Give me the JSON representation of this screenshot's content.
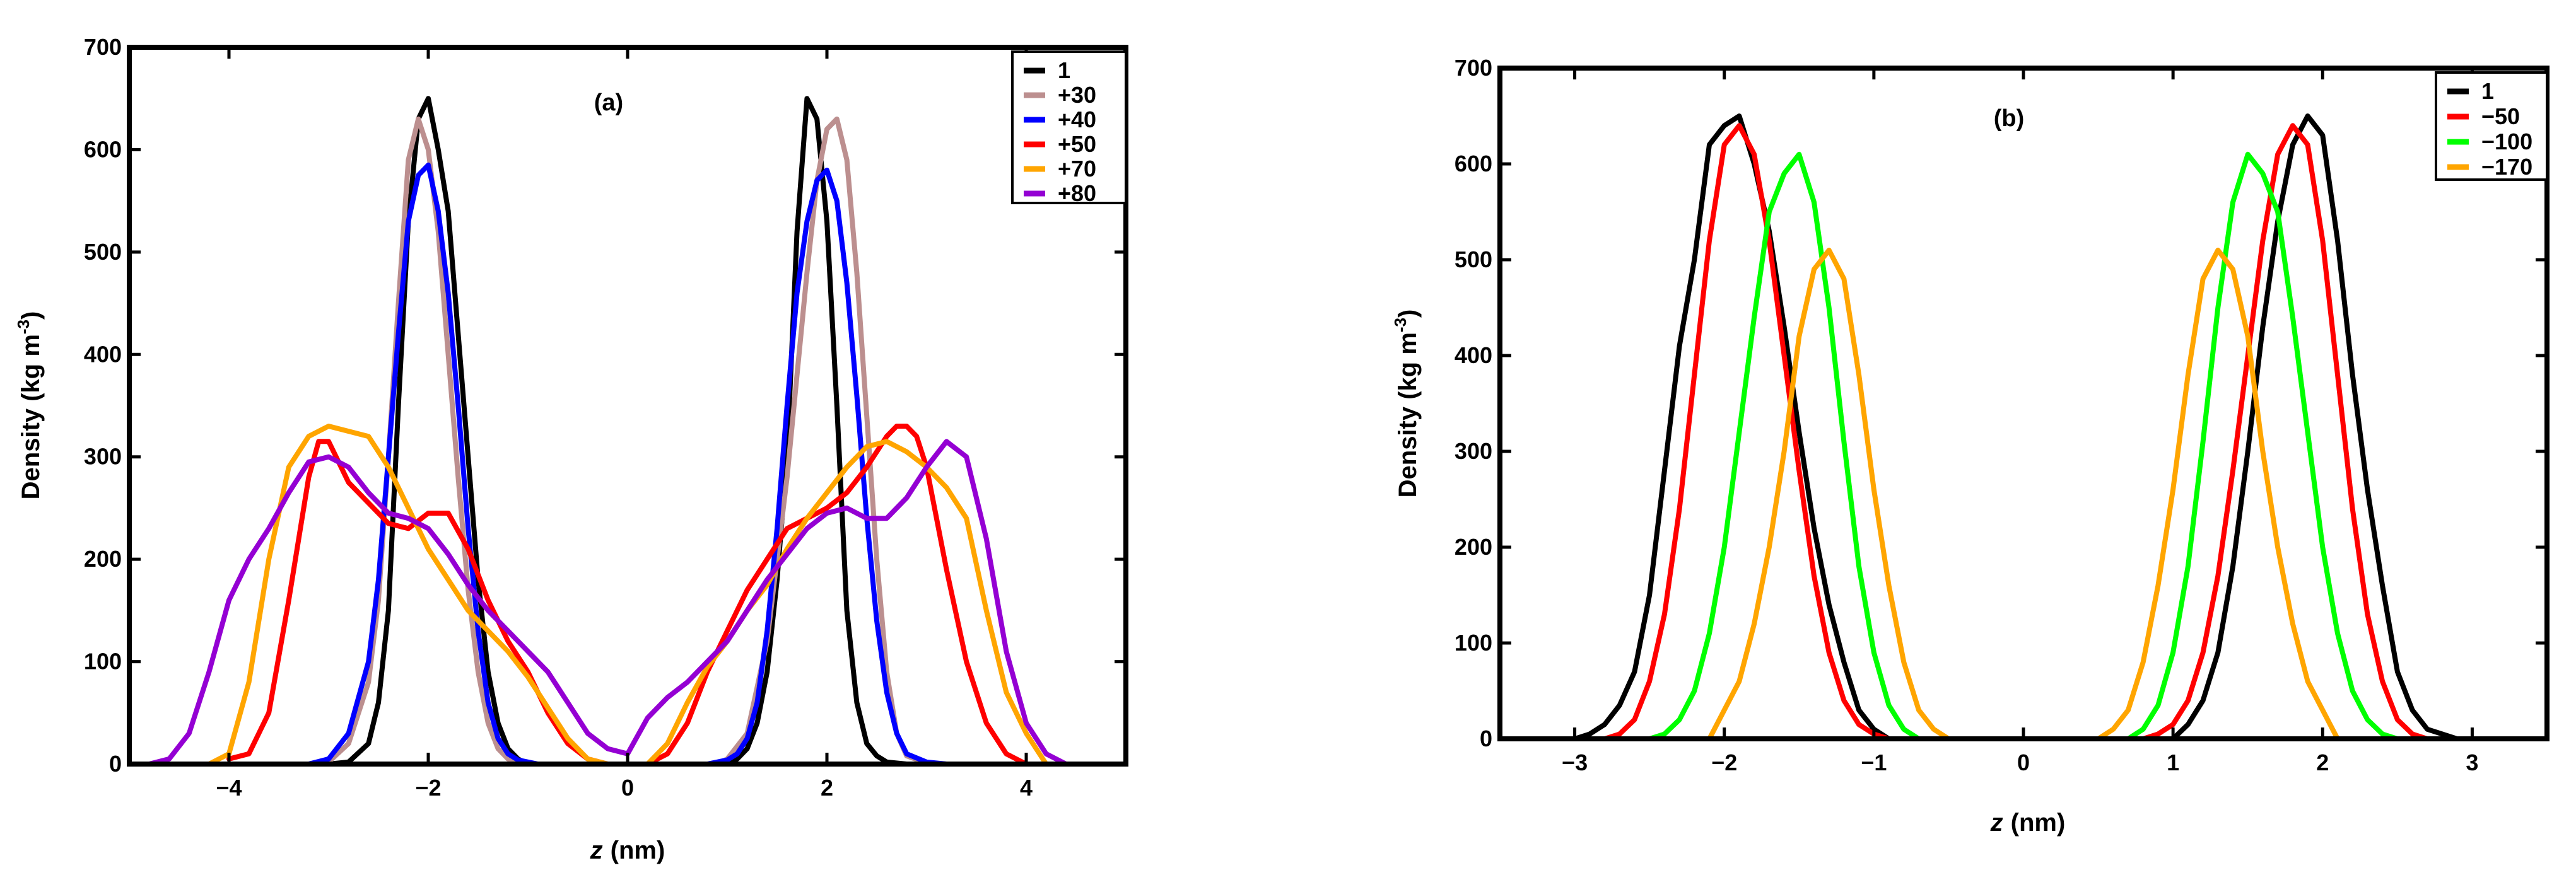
{
  "chart_data": [
    {
      "type": "line",
      "title": "(a)",
      "xlabel": "z",
      "xlabel_unit": "(nm)",
      "ylabel": "Density (kg m",
      "ylabel_sup": "-3",
      "ylabel_close": ")",
      "xlim": [
        -5,
        5
      ],
      "ylim": [
        0,
        700
      ],
      "xticks": [
        -4,
        -2,
        0,
        2,
        4
      ],
      "xtick_labels": [
        "−4",
        "−2",
        "0",
        "2",
        "4"
      ],
      "yticks": [
        0,
        100,
        200,
        300,
        400,
        500,
        600,
        700
      ],
      "ytick_labels": [
        "0",
        "100",
        "200",
        "300",
        "400",
        "500",
        "600",
        "700"
      ],
      "legend_position": "top-right",
      "series": [
        {
          "name": "1",
          "color": "#000000",
          "x": [
            -3.0,
            -2.8,
            -2.6,
            -2.5,
            -2.4,
            -2.3,
            -2.2,
            -2.1,
            -2.0,
            -1.9,
            -1.8,
            -1.7,
            -1.6,
            -1.5,
            -1.4,
            -1.3,
            -1.2,
            -1.1,
            -1.0
          ],
          "y": [
            0,
            2,
            20,
            60,
            150,
            350,
            530,
            630,
            650,
            600,
            540,
            420,
            300,
            180,
            90,
            40,
            15,
            5,
            0
          ]
        },
        {
          "name": "1",
          "color": "#000000",
          "x": [
            1.0,
            1.1,
            1.2,
            1.3,
            1.4,
            1.5,
            1.6,
            1.7,
            1.8,
            1.9,
            2.0,
            2.1,
            2.2,
            2.3,
            2.4,
            2.5,
            2.6,
            2.8,
            3.0
          ],
          "y": [
            0,
            5,
            15,
            40,
            90,
            180,
            300,
            520,
            650,
            630,
            530,
            350,
            150,
            60,
            20,
            8,
            2,
            0,
            0
          ]
        },
        {
          "name": "+30",
          "color": "#bc8f8f",
          "x": [
            -3.2,
            -3.0,
            -2.8,
            -2.6,
            -2.5,
            -2.4,
            -2.3,
            -2.2,
            -2.1,
            -2.0,
            -1.9,
            -1.8,
            -1.7,
            -1.6,
            -1.5,
            -1.4,
            -1.3,
            -1.2,
            -1.1,
            -1.0,
            -0.9
          ],
          "y": [
            0,
            2,
            20,
            80,
            160,
            300,
            450,
            590,
            630,
            600,
            520,
            400,
            280,
            170,
            90,
            40,
            15,
            5,
            2,
            0,
            0
          ]
        },
        {
          "name": "+30",
          "color": "#bc8f8f",
          "x": [
            0.9,
            1.0,
            1.2,
            1.4,
            1.6,
            1.8,
            1.9,
            2.0,
            2.1,
            2.2,
            2.3,
            2.4,
            2.5,
            2.6,
            2.7,
            2.8,
            3.0,
            3.2
          ],
          "y": [
            0,
            5,
            30,
            120,
            280,
            480,
            570,
            620,
            630,
            590,
            480,
            340,
            200,
            90,
            30,
            8,
            1,
            0
          ]
        },
        {
          "name": "+40",
          "color": "#0000ff",
          "x": [
            -3.2,
            -3.0,
            -2.8,
            -2.6,
            -2.5,
            -2.4,
            -2.3,
            -2.2,
            -2.1,
            -2.0,
            -1.9,
            -1.8,
            -1.7,
            -1.6,
            -1.5,
            -1.4,
            -1.3,
            -1.2,
            -1.1,
            -1.0,
            -0.9,
            -0.8
          ],
          "y": [
            0,
            5,
            30,
            100,
            180,
            300,
            420,
            530,
            575,
            585,
            540,
            460,
            350,
            230,
            130,
            60,
            25,
            10,
            4,
            2,
            0,
            0
          ]
        },
        {
          "name": "+40",
          "color": "#0000ff",
          "x": [
            0.8,
            0.9,
            1.0,
            1.1,
            1.2,
            1.3,
            1.4,
            1.5,
            1.6,
            1.7,
            1.8,
            1.9,
            2.0,
            2.1,
            2.2,
            2.3,
            2.4,
            2.5,
            2.6,
            2.7,
            2.8,
            3.0,
            3.2
          ],
          "y": [
            0,
            2,
            4,
            10,
            25,
            60,
            130,
            230,
            350,
            460,
            530,
            570,
            580,
            550,
            470,
            360,
            240,
            140,
            70,
            30,
            10,
            2,
            0
          ]
        },
        {
          "name": "+50",
          "color": "#ff0000",
          "x": [
            -4.0,
            -3.8,
            -3.6,
            -3.4,
            -3.2,
            -3.1,
            -3.0,
            -2.9,
            -2.8,
            -2.6,
            -2.4,
            -2.2,
            -2.0,
            -1.8,
            -1.6,
            -1.4,
            -1.2,
            -1.0,
            -0.8,
            -0.6,
            -0.4,
            -0.2
          ],
          "y": [
            5,
            10,
            50,
            160,
            280,
            315,
            315,
            295,
            275,
            255,
            235,
            230,
            245,
            245,
            210,
            160,
            120,
            90,
            50,
            20,
            5,
            0
          ]
        },
        {
          "name": "+50",
          "color": "#ff0000",
          "x": [
            0.2,
            0.4,
            0.6,
            0.8,
            1.0,
            1.2,
            1.4,
            1.6,
            1.8,
            2.0,
            2.2,
            2.4,
            2.6,
            2.7,
            2.8,
            2.9,
            3.0,
            3.2,
            3.4,
            3.6,
            3.8,
            4.0
          ],
          "y": [
            0,
            10,
            40,
            90,
            130,
            170,
            200,
            230,
            240,
            250,
            265,
            290,
            320,
            330,
            330,
            320,
            290,
            190,
            100,
            40,
            10,
            0
          ]
        },
        {
          "name": "+70",
          "color": "#ffa500",
          "x": [
            -4.2,
            -4.0,
            -3.8,
            -3.6,
            -3.4,
            -3.2,
            -3.0,
            -2.8,
            -2.6,
            -2.4,
            -2.2,
            -2.0,
            -1.8,
            -1.6,
            -1.4,
            -1.2,
            -1.0,
            -0.8,
            -0.6,
            -0.4,
            -0.2
          ],
          "y": [
            0,
            10,
            80,
            200,
            290,
            320,
            330,
            325,
            320,
            290,
            250,
            210,
            180,
            150,
            130,
            110,
            85,
            55,
            25,
            5,
            0
          ]
        },
        {
          "name": "+70",
          "color": "#ffa500",
          "x": [
            0.2,
            0.4,
            0.6,
            0.8,
            1.0,
            1.2,
            1.4,
            1.6,
            1.8,
            2.0,
            2.2,
            2.4,
            2.6,
            2.8,
            3.0,
            3.2,
            3.4,
            3.6,
            3.8,
            4.0,
            4.2
          ],
          "y": [
            0,
            20,
            60,
            95,
            120,
            150,
            175,
            210,
            240,
            265,
            290,
            310,
            315,
            305,
            290,
            270,
            240,
            150,
            70,
            30,
            0
          ]
        },
        {
          "name": "+80",
          "color": "#9400d3",
          "x": [
            -4.8,
            -4.6,
            -4.4,
            -4.2,
            -4.0,
            -3.8,
            -3.6,
            -3.4,
            -3.2,
            -3.0,
            -2.8,
            -2.6,
            -2.4,
            -2.2,
            -2.0,
            -1.8,
            -1.6,
            -1.4,
            -1.2,
            -1.0,
            -0.8,
            -0.6,
            -0.4,
            -0.2,
            0.0
          ],
          "y": [
            0,
            5,
            30,
            90,
            160,
            200,
            230,
            265,
            295,
            300,
            290,
            265,
            245,
            240,
            230,
            205,
            175,
            150,
            130,
            110,
            90,
            60,
            30,
            15,
            10
          ]
        },
        {
          "name": "+80",
          "color": "#9400d3",
          "x": [
            0.0,
            0.2,
            0.4,
            0.6,
            0.8,
            1.0,
            1.2,
            1.4,
            1.6,
            1.8,
            2.0,
            2.2,
            2.4,
            2.6,
            2.8,
            3.0,
            3.2,
            3.4,
            3.6,
            3.8,
            4.0,
            4.2,
            4.4,
            4.6
          ],
          "y": [
            10,
            45,
            65,
            80,
            100,
            120,
            150,
            180,
            205,
            230,
            245,
            250,
            240,
            240,
            260,
            290,
            315,
            300,
            220,
            110,
            40,
            10,
            0,
            0
          ]
        }
      ],
      "legend": [
        {
          "label": "1",
          "color": "#000000"
        },
        {
          "label": "+30",
          "color": "#bc8f8f"
        },
        {
          "label": "+40",
          "color": "#0000ff"
        },
        {
          "label": "+50",
          "color": "#ff0000"
        },
        {
          "label": "+70",
          "color": "#ffa500"
        },
        {
          "label": "+80",
          "color": "#9400d3"
        }
      ]
    },
    {
      "type": "line",
      "title": "(b)",
      "xlabel": "z",
      "xlabel_unit": "(nm)",
      "ylabel": "Density (kg m",
      "ylabel_sup": "-3",
      "ylabel_close": ")",
      "xlim": [
        -3.5,
        3.5
      ],
      "ylim": [
        0,
        700
      ],
      "xticks": [
        -3,
        -2,
        -1,
        0,
        1,
        2,
        3
      ],
      "xtick_labels": [
        "−3",
        "−2",
        "−1",
        "0",
        "1",
        "2",
        "3"
      ],
      "yticks": [
        0,
        100,
        200,
        300,
        400,
        500,
        600,
        700
      ],
      "ytick_labels": [
        "0",
        "100",
        "200",
        "300",
        "400",
        "500",
        "600",
        "700"
      ],
      "legend_position": "top-right",
      "series": [
        {
          "name": "1",
          "color": "#000000",
          "x": [
            -3.0,
            -2.9,
            -2.8,
            -2.7,
            -2.6,
            -2.5,
            -2.4,
            -2.3,
            -2.2,
            -2.1,
            -2.0,
            -1.9,
            -1.8,
            -1.7,
            -1.6,
            -1.5,
            -1.4,
            -1.3,
            -1.2,
            -1.1,
            -1.0,
            -0.9
          ],
          "y": [
            0,
            5,
            15,
            35,
            70,
            150,
            280,
            410,
            500,
            620,
            640,
            650,
            600,
            530,
            430,
            320,
            220,
            140,
            80,
            30,
            10,
            0
          ]
        },
        {
          "name": "1",
          "color": "#000000",
          "x": [
            1.0,
            1.1,
            1.2,
            1.3,
            1.4,
            1.5,
            1.6,
            1.7,
            1.8,
            1.9,
            2.0,
            2.1,
            2.2,
            2.3,
            2.4,
            2.5,
            2.6,
            2.7,
            2.8,
            2.9,
            3.0
          ],
          "y": [
            0,
            15,
            40,
            90,
            180,
            300,
            430,
            540,
            620,
            650,
            630,
            520,
            380,
            260,
            160,
            70,
            30,
            10,
            5,
            0,
            0
          ]
        },
        {
          "name": "-50",
          "color": "#ff0000",
          "x": [
            -2.8,
            -2.7,
            -2.6,
            -2.5,
            -2.4,
            -2.3,
            -2.2,
            -2.1,
            -2.0,
            -1.9,
            -1.8,
            -1.7,
            -1.6,
            -1.5,
            -1.4,
            -1.3,
            -1.2,
            -1.1,
            -1.0,
            -0.9,
            -0.8
          ],
          "y": [
            0,
            5,
            20,
            60,
            130,
            240,
            380,
            520,
            620,
            640,
            610,
            520,
            400,
            280,
            170,
            90,
            40,
            15,
            5,
            0,
            0
          ]
        },
        {
          "name": "-50",
          "color": "#ff0000",
          "x": [
            0.8,
            0.9,
            1.0,
            1.1,
            1.2,
            1.3,
            1.4,
            1.5,
            1.6,
            1.7,
            1.8,
            1.9,
            2.0,
            2.1,
            2.2,
            2.3,
            2.4,
            2.5,
            2.6,
            2.7,
            2.8
          ],
          "y": [
            0,
            5,
            15,
            40,
            90,
            170,
            280,
            400,
            520,
            610,
            640,
            620,
            520,
            380,
            240,
            130,
            60,
            20,
            5,
            0,
            0
          ]
        },
        {
          "name": "-100",
          "color": "#00ff00",
          "x": [
            -2.5,
            -2.4,
            -2.3,
            -2.2,
            -2.1,
            -2.0,
            -1.9,
            -1.8,
            -1.7,
            -1.6,
            -1.5,
            -1.4,
            -1.3,
            -1.2,
            -1.1,
            -1.0,
            -0.9,
            -0.8,
            -0.7
          ],
          "y": [
            0,
            5,
            20,
            50,
            110,
            200,
            320,
            440,
            550,
            590,
            610,
            560,
            450,
            310,
            180,
            90,
            35,
            10,
            0
          ]
        },
        {
          "name": "-100",
          "color": "#00ff00",
          "x": [
            0.7,
            0.8,
            0.9,
            1.0,
            1.1,
            1.2,
            1.3,
            1.4,
            1.5,
            1.6,
            1.7,
            1.8,
            1.9,
            2.0,
            2.1,
            2.2,
            2.3,
            2.4,
            2.5
          ],
          "y": [
            0,
            10,
            35,
            90,
            180,
            310,
            450,
            560,
            610,
            590,
            550,
            440,
            320,
            200,
            110,
            50,
            20,
            5,
            0
          ]
        },
        {
          "name": "-170",
          "color": "#ffa500",
          "x": [
            -2.1,
            -2.0,
            -1.9,
            -1.8,
            -1.7,
            -1.6,
            -1.5,
            -1.4,
            -1.3,
            -1.2,
            -1.1,
            -1.0,
            -0.9,
            -0.8,
            -0.7,
            -0.6,
            -0.5
          ],
          "y": [
            0,
            30,
            60,
            120,
            200,
            300,
            420,
            490,
            510,
            480,
            380,
            260,
            160,
            80,
            30,
            10,
            0
          ]
        },
        {
          "name": "-170",
          "color": "#ffa500",
          "x": [
            0.5,
            0.6,
            0.7,
            0.8,
            0.9,
            1.0,
            1.1,
            1.2,
            1.3,
            1.4,
            1.5,
            1.6,
            1.7,
            1.8,
            1.9,
            2.0,
            2.1
          ],
          "y": [
            0,
            10,
            30,
            80,
            160,
            260,
            380,
            480,
            510,
            490,
            420,
            300,
            200,
            120,
            60,
            30,
            0
          ]
        }
      ],
      "legend": [
        {
          "label": "1",
          "color": "#000000"
        },
        {
          "label": "−50",
          "color": "#ff0000"
        },
        {
          "label": "−100",
          "color": "#00ff00"
        },
        {
          "label": "−170",
          "color": "#ffa500"
        }
      ]
    }
  ]
}
